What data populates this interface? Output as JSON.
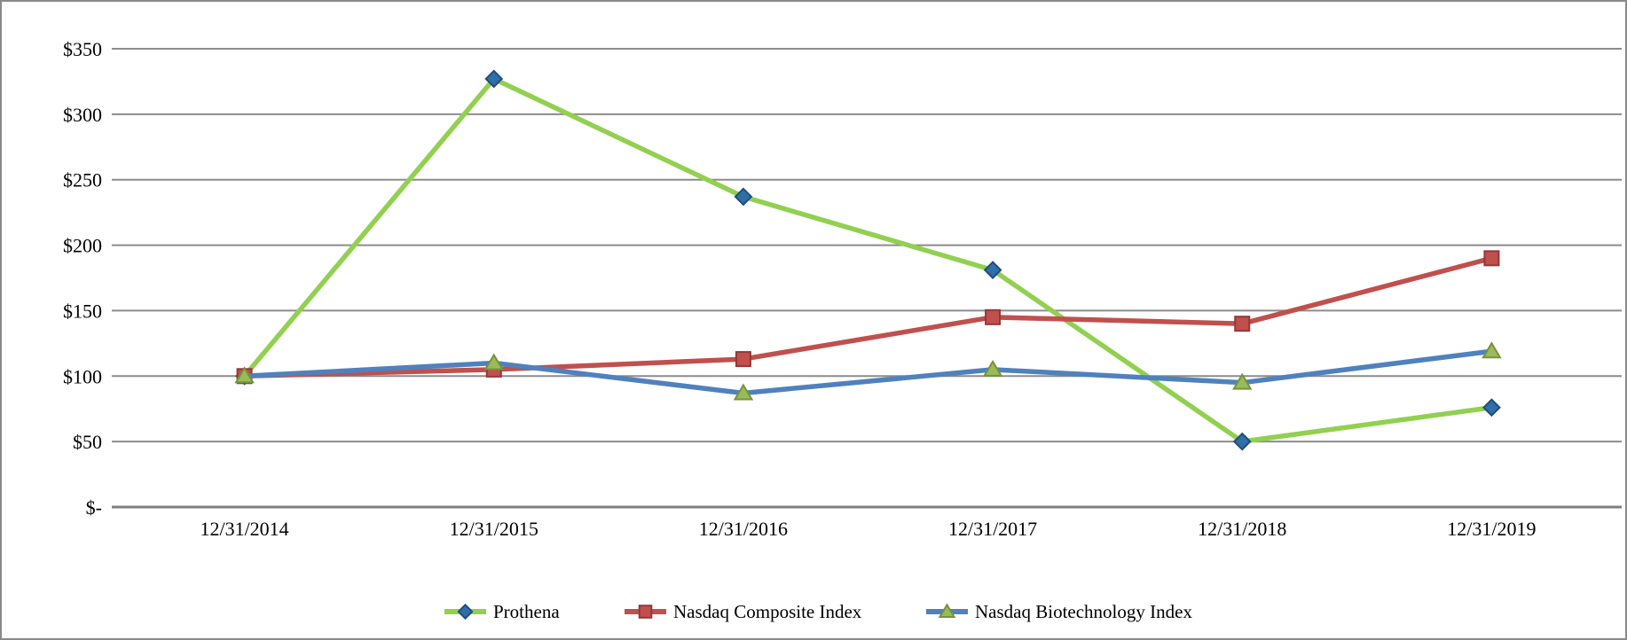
{
  "chart_data": {
    "type": "line",
    "title": "",
    "xlabel": "",
    "ylabel": "",
    "grid": true,
    "legend_position": "bottom",
    "ylim": [
      0,
      350
    ],
    "y_ticks": [
      {
        "label": "$350",
        "value": 350
      },
      {
        "label": "$300",
        "value": 300
      },
      {
        "label": "$250",
        "value": 250
      },
      {
        "label": "$200",
        "value": 200
      },
      {
        "label": "$150",
        "value": 150
      },
      {
        "label": "$100",
        "value": 100
      },
      {
        "label": "$50",
        "value": 50
      },
      {
        "label": "$-",
        "value": 0
      }
    ],
    "categories": [
      "12/31/2014",
      "12/31/2015",
      "12/31/2016",
      "12/31/2017",
      "12/31/2018",
      "12/31/2019"
    ],
    "series": [
      {
        "name": "Prothena",
        "values": [
          100,
          327,
          237,
          181,
          50,
          76
        ],
        "line_color": "#92D050",
        "marker": "diamond",
        "marker_fill": "#2E6FA8",
        "marker_stroke": "#1F4E79"
      },
      {
        "name": "Nasdaq Composite Index",
        "values": [
          100,
          105,
          113,
          145,
          140,
          190
        ],
        "line_color": "#C0504D",
        "marker": "square",
        "marker_fill": "#C0504D",
        "marker_stroke": "#953735"
      },
      {
        "name": "Nasdaq Biotechnology Index",
        "values": [
          100,
          110,
          87,
          105,
          95,
          119
        ],
        "line_color": "#4F81BD",
        "marker": "triangle",
        "marker_fill": "#9BBB59",
        "marker_stroke": "#75933D"
      }
    ],
    "colors": {
      "gridline": "#8C8C8C",
      "axis_line": "#7F7F7F",
      "tick_text": "#000000",
      "frame_border": "#8A8A8A",
      "background": "#FFFFFF"
    }
  }
}
